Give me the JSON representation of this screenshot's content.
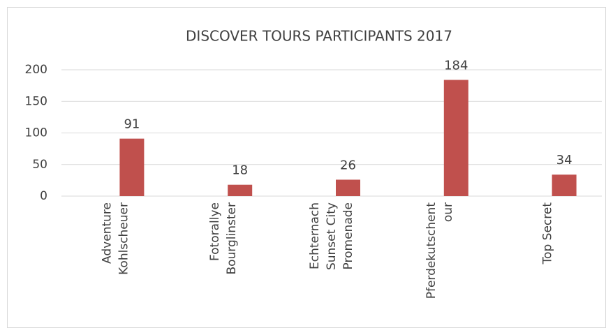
{
  "chart_data": {
    "type": "bar",
    "title": "DISCOVER TOURS PARTICIPANTS 2017",
    "categories": [
      [
        "Adventure",
        "Kohlscheuer"
      ],
      [
        "Fotorallye",
        "Bourglinster"
      ],
      [
        "Echternach",
        "Sunset City",
        "Promenade"
      ],
      [
        "Pferdekutschent",
        "our"
      ],
      [
        "Top Secret"
      ]
    ],
    "values": [
      91,
      18,
      26,
      184,
      34
    ],
    "color": "#c0504d",
    "ylim": [
      0,
      200
    ],
    "yticks": [
      0,
      50,
      100,
      150,
      200
    ],
    "grid": true
  }
}
